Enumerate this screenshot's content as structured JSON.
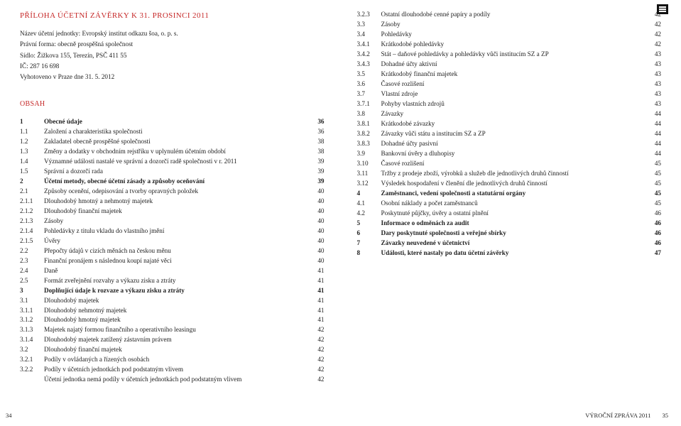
{
  "title": "PŘÍLOHA ÚČETNÍ ZÁVĚRKY K 31. PROSINCI 2011",
  "meta": [
    "Název účetní jednotky: Evropský institut odkazu šoa, o. p. s.",
    "Právní forma: obecně prospěšná společnost",
    "Sídlo: Žižkova 155, Terezín, PSČ 411 55",
    "IČ: 287 16 698",
    "Vyhotoveno v Praze dne 31. 5. 2012"
  ],
  "obsah_label": "OBSAH",
  "toc_left": [
    {
      "n": "1",
      "t": "Obecné údaje",
      "p": "36",
      "b": true
    },
    {
      "n": "1.1",
      "t": "Založení a charakteristika společnosti",
      "p": "36"
    },
    {
      "n": "1.2",
      "t": "Zakladatel obecně prospěšné společnosti",
      "p": "38"
    },
    {
      "n": "1.3",
      "t": "Změny a dodatky v obchodním rejstříku v uplynulém účetním období",
      "p": "38"
    },
    {
      "n": "1.4",
      "t": "Významné události nastalé ve správní a dozorčí radě společnosti v r. 2011",
      "p": "39"
    },
    {
      "n": "1.5",
      "t": "Správní a dozorčí rada",
      "p": "39"
    },
    {
      "n": "2",
      "t": "Účetní metody, obecné účetní zásady a způsoby oceňování",
      "p": "39",
      "b": true
    },
    {
      "n": "2.1",
      "t": "Způsoby ocenění, odepisování a tvorby opravných položek",
      "p": "40"
    },
    {
      "n": "2.1.1",
      "t": "Dlouhodobý hmotný a nehmotný majetek",
      "p": "40"
    },
    {
      "n": "2.1.2",
      "t": "Dlouhodobý finanční majetek",
      "p": "40"
    },
    {
      "n": "2.1.3",
      "t": "Zásoby",
      "p": "40"
    },
    {
      "n": "2.1.4",
      "t": "Pohledávky z titulu vkladu do vlastního jmění",
      "p": "40"
    },
    {
      "n": "2.1.5",
      "t": "Úvěry",
      "p": "40"
    },
    {
      "n": "2.2",
      "t": "Přepočty údajů v cizích měnách na českou měnu",
      "p": "40"
    },
    {
      "n": "2.3",
      "t": "Finanční pronájem s následnou koupí najaté věci",
      "p": "40"
    },
    {
      "n": "2.4",
      "t": "Daně",
      "p": "41"
    },
    {
      "n": "2.5",
      "t": "Formát zveřejnění rozvahy a výkazu zisku a ztráty",
      "p": "41"
    },
    {
      "n": "3",
      "t": "Doplňující údaje k rozvaze a výkazu zisku a ztráty",
      "p": "41",
      "b": true
    },
    {
      "n": "3.1",
      "t": "Dlouhodobý majetek",
      "p": "41"
    },
    {
      "n": "3.1.1",
      "t": "Dlouhodobý nehmotný majetek",
      "p": "41"
    },
    {
      "n": "3.1.2",
      "t": "Dlouhodobý hmotný majetek",
      "p": "41"
    },
    {
      "n": "3.1.3",
      "t": "Majetek najatý formou finančního a operativního leasingu",
      "p": "42"
    },
    {
      "n": "3.1.4",
      "t": "Dlouhodobý majetek zatížený zástavním právem",
      "p": "42"
    },
    {
      "n": "3.2",
      "t": "Dlouhodobý finanční majetek",
      "p": "42"
    },
    {
      "n": "3.2.1",
      "t": "Podíly v ovládaných a řízených osobách",
      "p": "42"
    },
    {
      "n": "3.2.2",
      "t": "Podíly v účetních jednotkách pod podstatným vlivem",
      "p": "42"
    },
    {
      "n": "",
      "t": "Účetní jednotka nemá podíly v účetních jednotkách pod podstatným vlivem",
      "p": "42"
    }
  ],
  "toc_right": [
    {
      "n": "3.2.3",
      "t": "Ostatní dlouhodobé cenné papíry a podíly",
      "p": "42"
    },
    {
      "n": "3.3",
      "t": "Zásoby",
      "p": "42"
    },
    {
      "n": "3.4",
      "t": "Pohledávky",
      "p": "42"
    },
    {
      "n": "3.4.1",
      "t": "Krátkodobé pohledávky",
      "p": "42"
    },
    {
      "n": "3.4.2",
      "t": "Stát – daňové pohledávky a pohledávky vůči institucím SZ a ZP",
      "p": "43"
    },
    {
      "n": "3.4.3",
      "t": "Dohadné účty aktivní",
      "p": "43"
    },
    {
      "n": "3.5",
      "t": "Krátkodobý finanční majetek",
      "p": "43"
    },
    {
      "n": "3.6",
      "t": "Časové rozlišení",
      "p": "43"
    },
    {
      "n": "3.7",
      "t": "Vlastní zdroje",
      "p": "43"
    },
    {
      "n": "3.7.1",
      "t": "Pohyby vlastních zdrojů",
      "p": "43"
    },
    {
      "n": "3.8",
      "t": "Závazky",
      "p": "44"
    },
    {
      "n": "3.8.1",
      "t": "Krátkodobé závazky",
      "p": "44"
    },
    {
      "n": "3.8.2",
      "t": "Závazky vůči státu a institucím SZ a ZP",
      "p": "44"
    },
    {
      "n": "3.8.3",
      "t": "Dohadné účty pasivní",
      "p": "44"
    },
    {
      "n": "3.9",
      "t": "Bankovní úvěry a dluhopisy",
      "p": "44"
    },
    {
      "n": "3.10",
      "t": "Časové rozlišení",
      "p": "45"
    },
    {
      "n": "3.11",
      "t": "Tržby z prodeje zboží, výrobků a služeb dle jednotlivých druhů činností",
      "p": "45"
    },
    {
      "n": "3.12",
      "t": "Výsledek hospodaření v členění dle jednotlivých druhů činností",
      "p": "45"
    },
    {
      "n": "4",
      "t": "Zaměstnanci, vedení společnosti a statutární orgány",
      "p": "45",
      "b": true
    },
    {
      "n": "4.1",
      "t": "Osobní náklady a počet zaměstnanců",
      "p": "45"
    },
    {
      "n": "4.2",
      "t": "Poskytnuté půjčky, úvěry a ostatní plnění",
      "p": "46"
    },
    {
      "n": "5",
      "t": "Informace o odměnách za audit",
      "p": "46",
      "b": true
    },
    {
      "n": "6",
      "t": "Dary poskytnuté společnosti a veřejné sbírky",
      "p": "46",
      "b": true
    },
    {
      "n": "7",
      "t": "Závazky neuvedené v účetnictví",
      "p": "46",
      "b": true
    },
    {
      "n": "8",
      "t": "Události, které nastaly po datu účetní závěrky",
      "p": "47",
      "b": true
    }
  ],
  "footer": {
    "left_page": "34",
    "right_label": "VÝROČNÍ ZPRÁVA 2011",
    "right_page": "35"
  }
}
